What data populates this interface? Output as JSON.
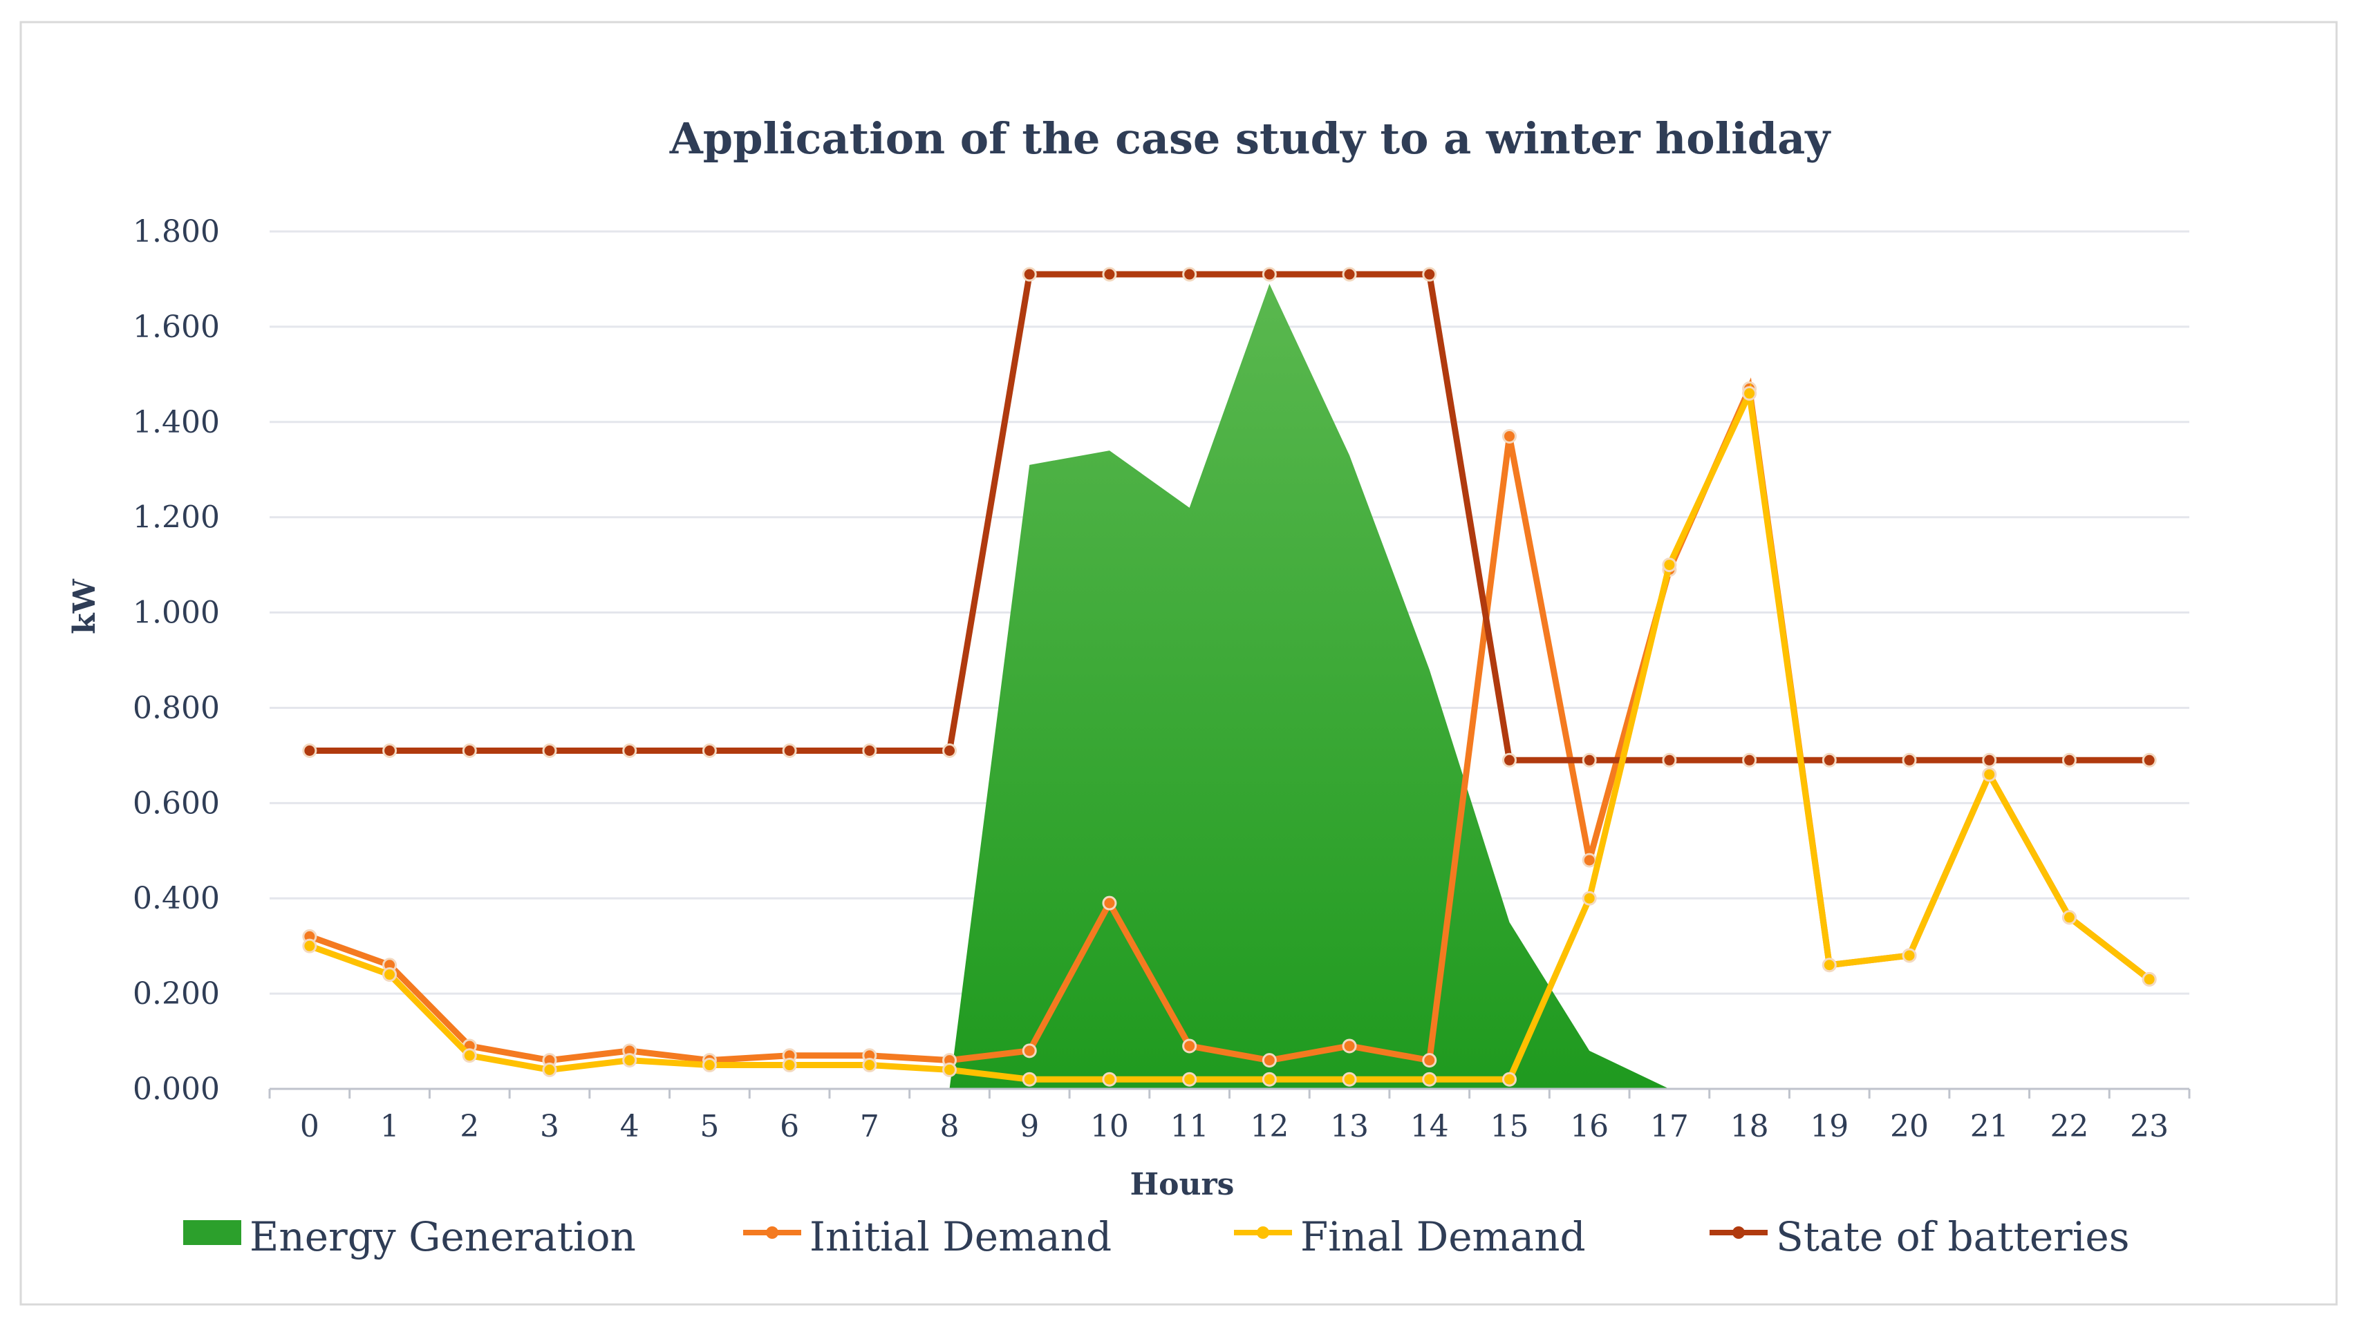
{
  "chart_data": {
    "type": "line",
    "title": "Application of the case study to a winter holiday",
    "xlabel": "Hours",
    "ylabel": "kW",
    "ylim": [
      0,
      1.8
    ],
    "y_ticks": [
      "0.000",
      "0.200",
      "0.400",
      "0.600",
      "0.800",
      "1.000",
      "1.200",
      "1.400",
      "1.600",
      "1.800"
    ],
    "categories": [
      "0",
      "1",
      "2",
      "3",
      "4",
      "5",
      "6",
      "7",
      "8",
      "9",
      "10",
      "11",
      "12",
      "13",
      "14",
      "15",
      "16",
      "17",
      "18",
      "19",
      "20",
      "21",
      "22",
      "23"
    ],
    "grid": true,
    "legend_position": "bottom",
    "series": [
      {
        "name": "Energy Generation",
        "kind": "area",
        "color": "#2ca02c",
        "values": [
          0,
          0,
          0,
          0,
          0,
          0,
          0,
          0,
          0,
          1.31,
          1.34,
          1.22,
          1.69,
          1.33,
          0.88,
          0.35,
          0.08,
          0,
          null,
          null,
          null,
          null,
          null,
          null
        ]
      },
      {
        "name": "Initial Demand",
        "kind": "line",
        "color": "#f47a20",
        "values": [
          0.32,
          0.26,
          0.09,
          0.06,
          0.08,
          0.06,
          0.07,
          0.07,
          0.06,
          0.08,
          0.39,
          0.09,
          0.06,
          0.09,
          0.06,
          1.37,
          0.48,
          1.09,
          1.47,
          0.26,
          0.28,
          0.66,
          0.36,
          0.23
        ]
      },
      {
        "name": "Final Demand",
        "kind": "line",
        "color": "#ffc000",
        "values": [
          0.3,
          0.24,
          0.07,
          0.04,
          0.06,
          0.05,
          0.05,
          0.05,
          0.04,
          0.02,
          0.02,
          0.02,
          0.02,
          0.02,
          0.02,
          0.02,
          0.4,
          1.1,
          1.46,
          0.26,
          0.28,
          0.66,
          0.36,
          0.23
        ]
      },
      {
        "name": "State of  batteries",
        "kind": "line",
        "color": "#b03a0e",
        "values": [
          0.71,
          0.71,
          0.71,
          0.71,
          0.71,
          0.71,
          0.71,
          0.71,
          0.71,
          1.71,
          1.71,
          1.71,
          1.71,
          1.71,
          1.71,
          0.69,
          0.69,
          0.69,
          0.69,
          0.69,
          0.69,
          0.69,
          0.69,
          0.69
        ]
      }
    ]
  }
}
